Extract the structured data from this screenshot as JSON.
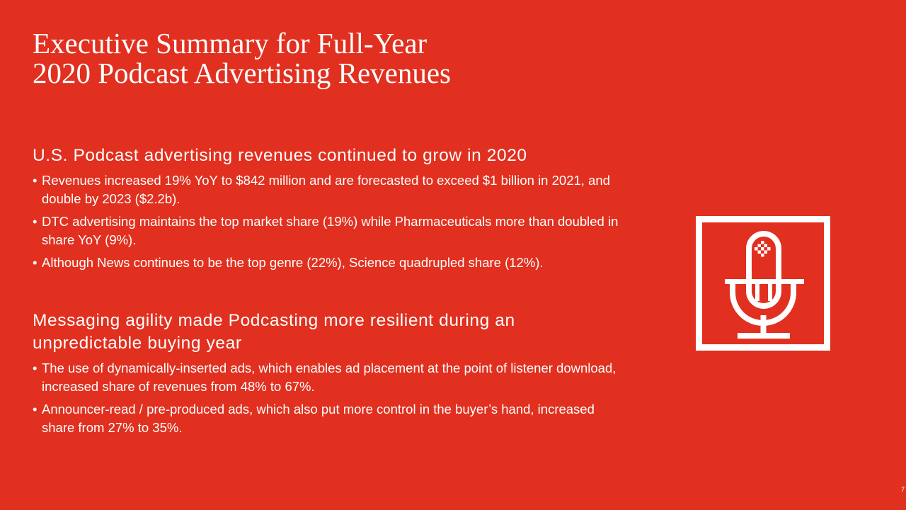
{
  "slide": {
    "title_line1": "Executive Summary for Full-Year",
    "title_line2": "2020 Podcast Advertising Revenues",
    "sections": [
      {
        "heading": "U.S. Podcast advertising revenues continued to grow in 2020",
        "bullets": [
          "Revenues increased 19% YoY to $842 million and are forecasted to exceed $1 billion in 2021, and double by 2023 ($2.2b).",
          "DTC advertising maintains the top market share (19%) while Pharmaceuticals more than doubled in share YoY (9%).",
          "Although News continues to be the top genre (22%), Science quadrupled share (12%)."
        ]
      },
      {
        "heading": "Messaging agility made Podcasting more resilient during an unpredictable buying year",
        "bullets": [
          "The use of dynamically-inserted ads, which enables ad placement at the point of listener download, increased share of revenues from 48% to 67%.",
          "Announcer-read / pre-produced ads, which also put more control in the buyer’s hand, increased share from 27% to 35%."
        ]
      }
    ],
    "page_number": "7",
    "icon": "microphone-icon",
    "colors": {
      "background": "#e1301f",
      "foreground": "#ffffff"
    }
  }
}
